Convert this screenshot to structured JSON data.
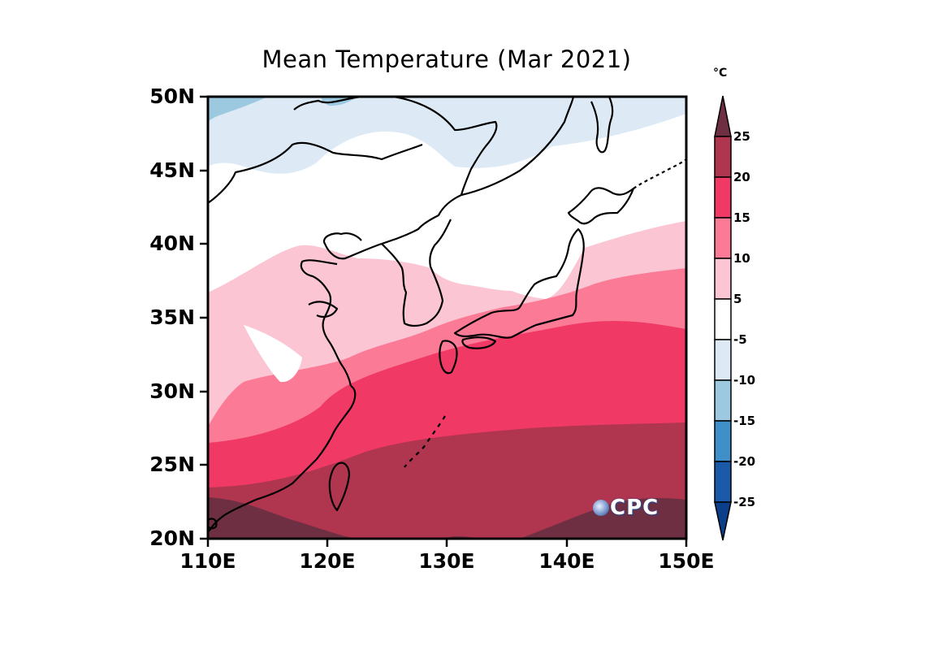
{
  "title": "Mean Temperature (Mar 2021)",
  "unit": "°C",
  "map": {
    "lon_range": [
      110,
      150
    ],
    "lat_range": [
      20,
      50
    ],
    "lat_ticks": [
      "50N",
      "45N",
      "40N",
      "35N",
      "30N",
      "25N",
      "20N"
    ],
    "lon_ticks": [
      "110E",
      "120E",
      "130E",
      "140E",
      "150E"
    ],
    "logo": "CPC"
  },
  "colorbar": {
    "labels": [
      "25",
      "20",
      "15",
      "10",
      "5",
      "-5",
      "-10",
      "-15",
      "-20",
      "-25"
    ],
    "colors": [
      "#6e2f43",
      "#b0354f",
      "#f03a65",
      "#fb7a96",
      "#fbc5d3",
      "#ffffff",
      "#ddeaf6",
      "#9cc9e0",
      "#3f8fc8",
      "#1a5aa8",
      "#0b3f8a"
    ]
  }
}
